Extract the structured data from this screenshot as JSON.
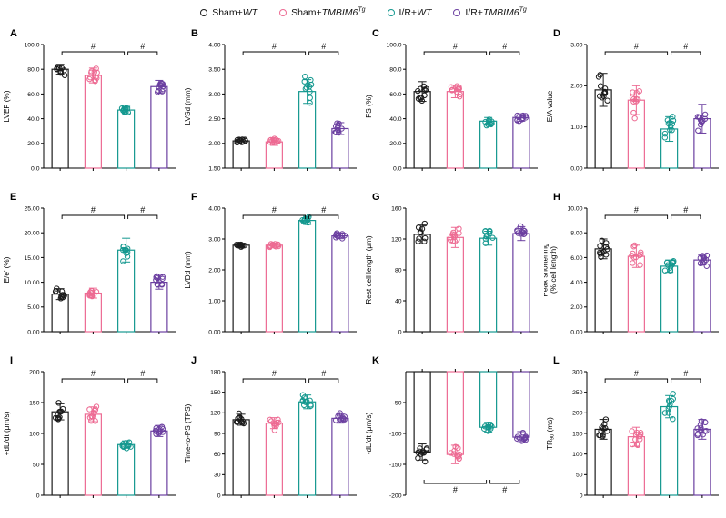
{
  "figure": {
    "background": "#ffffff",
    "sig_label": "#",
    "group_colors": [
      "#1b1b1b",
      "#ed6b93",
      "#14988f",
      "#6b3fa0"
    ],
    "group_labels": [
      "Sham+WT",
      "Sham+TMBIM6Tg",
      "I/R+WT",
      "I/R+TMBIM6Tg"
    ]
  },
  "legend": {
    "items": [
      {
        "name": "sham-wt",
        "color": "#1b1b1b",
        "segments": [
          {
            "t": "Sham+"
          },
          {
            "t": "WT",
            "italic": true
          }
        ]
      },
      {
        "name": "sham-tmbim6tg",
        "color": "#ed6b93",
        "segments": [
          {
            "t": "Sham+"
          },
          {
            "t": "TMBIM6",
            "italic": true
          },
          {
            "t": "Tg",
            "italic": true,
            "sup": true
          }
        ]
      },
      {
        "name": "ir-wt",
        "color": "#14988f",
        "segments": [
          {
            "t": "I/R+"
          },
          {
            "t": "WT",
            "italic": true
          }
        ]
      },
      {
        "name": "ir-tmbim6tg",
        "color": "#6b3fa0",
        "segments": [
          {
            "t": "I/R+"
          },
          {
            "t": "TMBIM6",
            "italic": true
          },
          {
            "t": "Tg",
            "italic": true,
            "sup": true
          }
        ]
      }
    ]
  },
  "chart_data": [
    {
      "panel": "A",
      "type": "bar",
      "ylabel_lines": [
        [
          {
            "t": "LVEF (%)"
          }
        ]
      ],
      "ylim": [
        0,
        100
      ],
      "baseline": 0,
      "yticks": [
        0,
        20,
        40,
        60,
        80,
        100
      ],
      "tick_decimals": 1,
      "categories": [
        "Sham+WT",
        "Sham+TMBIM6Tg",
        "I/R+WT",
        "I/R+TMBIM6Tg"
      ],
      "means": [
        80,
        75,
        47,
        66
      ],
      "errors": [
        4,
        6,
        3,
        5
      ],
      "n": 11,
      "sig": [
        {
          "a": 0,
          "b": 2
        },
        {
          "a": 2,
          "b": 3
        }
      ],
      "sig_position": "top"
    },
    {
      "panel": "B",
      "type": "bar",
      "ylabel_lines": [
        [
          {
            "t": "LVSd (mm)"
          }
        ]
      ],
      "ylim": [
        1.5,
        4
      ],
      "baseline": 1.5,
      "yticks": [
        1.5,
        2,
        2.5,
        3,
        3.5,
        4
      ],
      "tick_decimals": 2,
      "categories": [
        "Sham+WT",
        "Sham+TMBIM6Tg",
        "I/R+WT",
        "I/R+TMBIM6Tg"
      ],
      "means": [
        2.05,
        2.03,
        3.05,
        2.3
      ],
      "errors": [
        0.06,
        0.07,
        0.24,
        0.12
      ],
      "n": 11,
      "sig": [
        {
          "a": 0,
          "b": 2
        },
        {
          "a": 2,
          "b": 3
        }
      ],
      "sig_position": "top"
    },
    {
      "panel": "C",
      "type": "bar",
      "ylabel_lines": [
        [
          {
            "t": "FS (%)"
          }
        ]
      ],
      "ylim": [
        0,
        100
      ],
      "baseline": 0,
      "yticks": [
        0,
        20,
        40,
        60,
        80,
        100
      ],
      "tick_decimals": 1,
      "categories": [
        "Sham+WT",
        "Sham+TMBIM6Tg",
        "I/R+WT",
        "I/R+TMBIM6Tg"
      ],
      "means": [
        62,
        62,
        38,
        41
      ],
      "errors": [
        8,
        5,
        3,
        3
      ],
      "n": 11,
      "sig": [
        {
          "a": 0,
          "b": 2
        },
        {
          "a": 2,
          "b": 3
        }
      ],
      "sig_position": "top"
    },
    {
      "panel": "D",
      "type": "bar",
      "ylabel_lines": [
        [
          {
            "t": "E/A value"
          }
        ]
      ],
      "ylim": [
        0,
        3
      ],
      "baseline": 0,
      "yticks": [
        0,
        1,
        2,
        3
      ],
      "tick_decimals": 2,
      "categories": [
        "Sham+WT",
        "Sham+TMBIM6Tg",
        "I/R+WT",
        "I/R+TMBIM6Tg"
      ],
      "means": [
        1.9,
        1.65,
        0.95,
        1.2
      ],
      "errors": [
        0.4,
        0.35,
        0.3,
        0.35
      ],
      "n": 11,
      "sig": [
        {
          "a": 0,
          "b": 2
        },
        {
          "a": 2,
          "b": 3
        }
      ],
      "sig_position": "top"
    },
    {
      "panel": "E",
      "type": "bar",
      "ylabel_lines": [
        [
          {
            "t": "E/e′ (%)"
          }
        ]
      ],
      "ylim": [
        0,
        25
      ],
      "baseline": 0,
      "yticks": [
        0,
        5,
        10,
        15,
        20,
        25
      ],
      "tick_decimals": 2,
      "categories": [
        "Sham+WT",
        "Sham+TMBIM6Tg",
        "I/R+WT",
        "I/R+TMBIM6Tg"
      ],
      "means": [
        7.6,
        7.8,
        16.5,
        10
      ],
      "errors": [
        1.1,
        1,
        2.4,
        1.4
      ],
      "n": 11,
      "sig": [
        {
          "a": 0,
          "b": 2
        },
        {
          "a": 2,
          "b": 3
        }
      ],
      "sig_position": "top"
    },
    {
      "panel": "F",
      "type": "bar",
      "ylabel_lines": [
        [
          {
            "t": "LVDd (mm)"
          }
        ]
      ],
      "ylim": [
        0,
        4
      ],
      "baseline": 0,
      "yticks": [
        0,
        1,
        2,
        3,
        4
      ],
      "tick_decimals": 2,
      "categories": [
        "Sham+WT",
        "Sham+TMBIM6Tg",
        "I/R+WT",
        "I/R+TMBIM6Tg"
      ],
      "means": [
        2.8,
        2.8,
        3.6,
        3.1
      ],
      "errors": [
        0.05,
        0.07,
        0.13,
        0.09
      ],
      "n": 11,
      "sig": [
        {
          "a": 0,
          "b": 2
        },
        {
          "a": 2,
          "b": 3
        }
      ],
      "sig_position": "top"
    },
    {
      "panel": "G",
      "type": "bar",
      "ylabel_lines": [
        [
          {
            "t": "Rest cell length (μm)"
          }
        ]
      ],
      "ylim": [
        0,
        160
      ],
      "baseline": 0,
      "yticks": [
        0,
        40,
        80,
        120,
        160
      ],
      "tick_decimals": 0,
      "categories": [
        "Sham+WT",
        "Sham+TMBIM6Tg",
        "I/R+WT",
        "I/R+TMBIM6Tg"
      ],
      "means": [
        126,
        122,
        121,
        127
      ],
      "errors": [
        12,
        13,
        9,
        9
      ],
      "n": 11,
      "sig": [],
      "sig_position": "top"
    },
    {
      "panel": "H",
      "type": "bar",
      "ylabel_lines": [
        [
          {
            "t": "Peak shortening"
          }
        ],
        [
          {
            "t": "(% cell length)"
          }
        ]
      ],
      "ylim": [
        0,
        10
      ],
      "baseline": 0,
      "yticks": [
        0,
        2,
        4,
        6,
        8,
        10
      ],
      "tick_decimals": 2,
      "categories": [
        "Sham+WT",
        "Sham+TMBIM6Tg",
        "I/R+WT",
        "I/R+TMBIM6Tg"
      ],
      "means": [
        6.7,
        6.1,
        5.3,
        5.8
      ],
      "errors": [
        0.8,
        0.9,
        0.5,
        0.4
      ],
      "n": 11,
      "sig": [
        {
          "a": 0,
          "b": 2
        },
        {
          "a": 2,
          "b": 3
        }
      ],
      "sig_position": "top"
    },
    {
      "panel": "I",
      "type": "bar",
      "ylabel_lines": [
        [
          {
            "t": "+dL/dt (μm/s)"
          }
        ]
      ],
      "ylim": [
        0,
        200
      ],
      "baseline": 0,
      "yticks": [
        0,
        50,
        100,
        150,
        200
      ],
      "tick_decimals": 0,
      "categories": [
        "Sham+WT",
        "Sham+TMBIM6Tg",
        "I/R+WT",
        "I/R+TMBIM6Tg"
      ],
      "means": [
        135,
        131,
        82,
        104
      ],
      "errors": [
        13,
        12,
        6,
        9
      ],
      "n": 11,
      "sig": [
        {
          "a": 0,
          "b": 2
        },
        {
          "a": 2,
          "b": 3
        }
      ],
      "sig_position": "top"
    },
    {
      "panel": "J",
      "type": "bar",
      "ylabel_lines": [
        [
          {
            "t": "Time-to-PS (TPS)"
          }
        ]
      ],
      "ylim": [
        0,
        180
      ],
      "baseline": 0,
      "yticks": [
        0,
        30,
        60,
        90,
        120,
        150,
        180
      ],
      "tick_decimals": 0,
      "categories": [
        "Sham+WT",
        "Sham+TMBIM6Tg",
        "I/R+WT",
        "I/R+TMBIM6Tg"
      ],
      "means": [
        110,
        105,
        136,
        112
      ],
      "errors": [
        8,
        8,
        10,
        7
      ],
      "n": 11,
      "sig": [
        {
          "a": 0,
          "b": 2
        },
        {
          "a": 2,
          "b": 3
        }
      ],
      "sig_position": "top"
    },
    {
      "panel": "K",
      "type": "bar",
      "ylabel_lines": [
        [
          {
            "t": "-dL/dt (μm/s)"
          }
        ]
      ],
      "ylim": [
        -200,
        0
      ],
      "baseline": 0,
      "yticks": [
        -200,
        -150,
        -100,
        -50
      ],
      "tick_decimals": 0,
      "categories": [
        "Sham+WT",
        "Sham+TMBIM6Tg",
        "I/R+WT",
        "I/R+TMBIM6Tg"
      ],
      "means": [
        -130,
        -134,
        -90,
        -106
      ],
      "errors": [
        13,
        15,
        8,
        9
      ],
      "n": 11,
      "sig": [
        {
          "a": 0,
          "b": 2
        },
        {
          "a": 2,
          "b": 3
        }
      ],
      "sig_position": "bottom"
    },
    {
      "panel": "L",
      "type": "bar",
      "ylabel_lines": [
        [
          {
            "t": "TR"
          },
          {
            "t": "90",
            "sub": true
          },
          {
            "t": " (ms)"
          }
        ]
      ],
      "ylim": [
        0,
        300
      ],
      "baseline": 0,
      "yticks": [
        0,
        50,
        100,
        150,
        200,
        250,
        300
      ],
      "tick_decimals": 0,
      "categories": [
        "Sham+WT",
        "Sham+TMBIM6Tg",
        "I/R+WT",
        "I/R+TMBIM6Tg"
      ],
      "means": [
        160,
        142,
        215,
        160
      ],
      "errors": [
        24,
        23,
        27,
        24
      ],
      "n": 11,
      "sig": [
        {
          "a": 0,
          "b": 2
        },
        {
          "a": 2,
          "b": 3
        }
      ],
      "sig_position": "top"
    }
  ]
}
